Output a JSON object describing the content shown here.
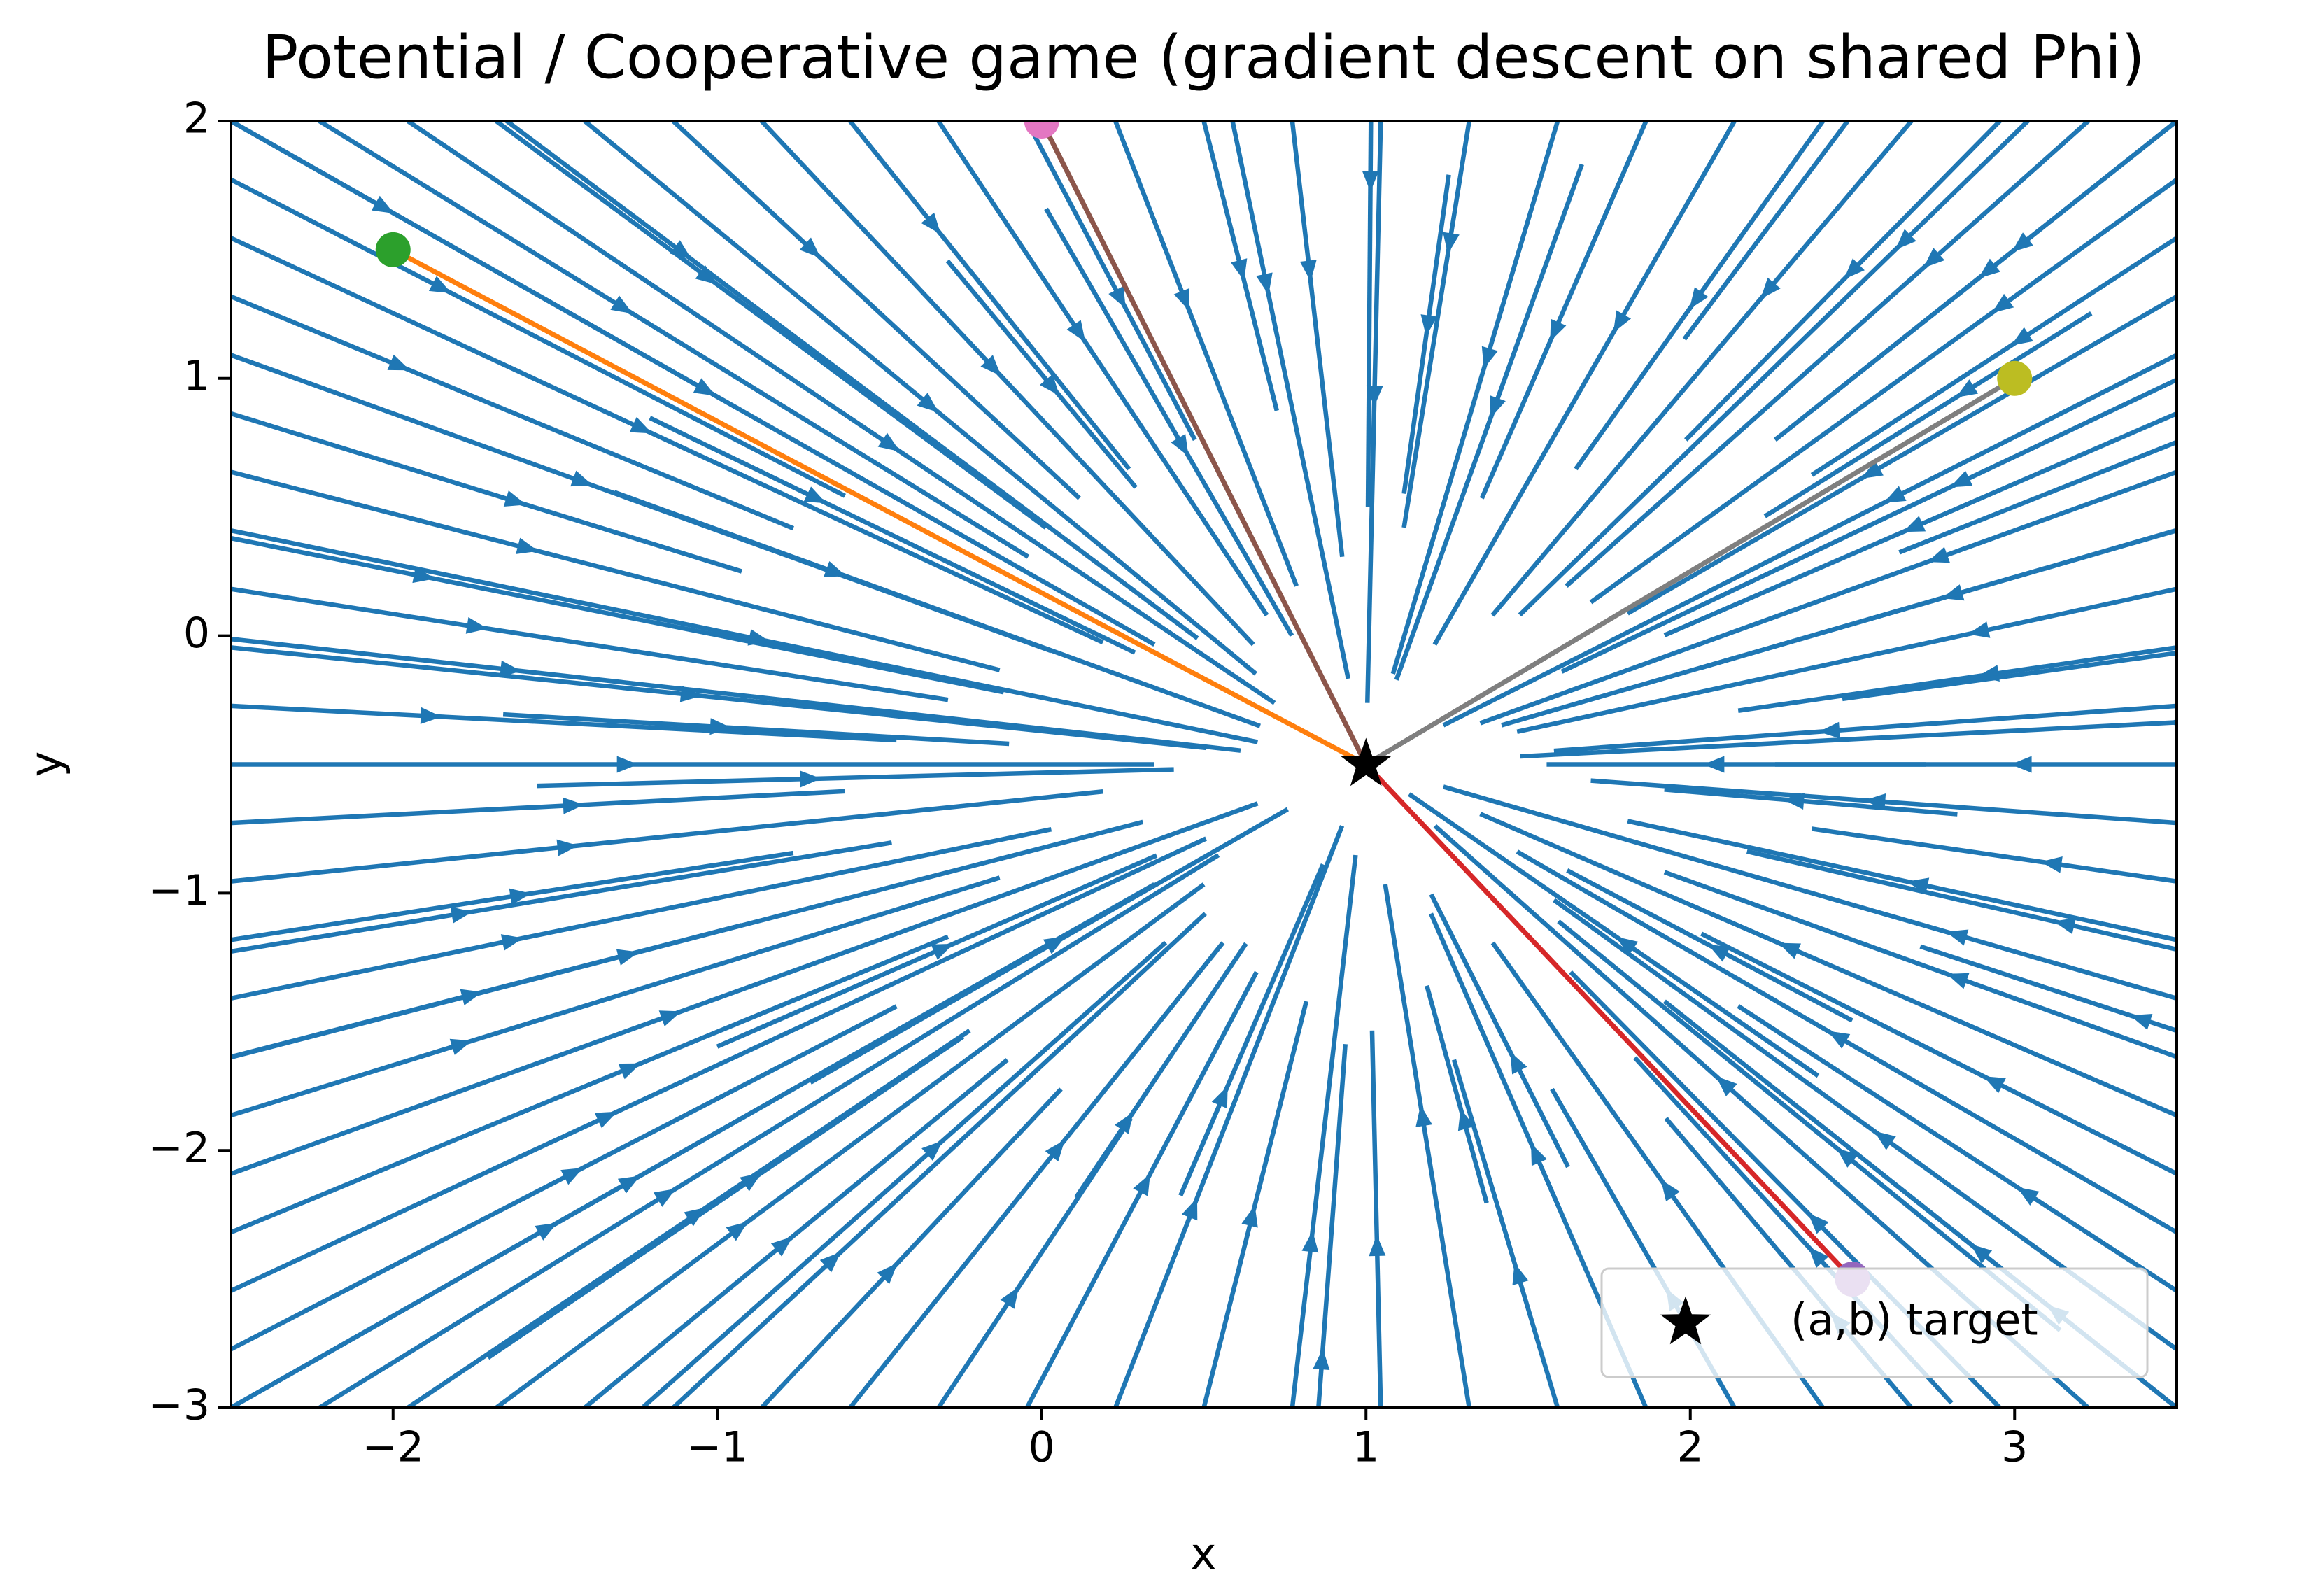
{
  "chart_data": {
    "type": "streamplot",
    "title": "Potential / Cooperative game (gradient descent on shared Phi)",
    "x_label": "x",
    "y_label": "y",
    "xlim": [
      -2.5,
      3.5
    ],
    "ylim": [
      -3,
      2
    ],
    "xticks": [
      {
        "value": -2,
        "label": "−2"
      },
      {
        "value": -1,
        "label": "−1"
      },
      0,
      1,
      2,
      3
    ],
    "yticks": [
      {
        "value": -3,
        "label": "−3"
      },
      {
        "value": -2,
        "label": "−2"
      },
      {
        "value": -1,
        "label": "−1"
      },
      0,
      1,
      2
    ],
    "stream_color": "#1f77b4",
    "target": {
      "x": 1,
      "y": -0.5,
      "label": "(a,b) target",
      "color": "#000000"
    },
    "legend": "lower right",
    "trajectories": [
      {
        "color": "#ff7f0e",
        "start_color": "#2ca02c",
        "x": [
          -2,
          1
        ],
        "y": [
          1.5,
          -0.5
        ]
      },
      {
        "color": "#8c564b",
        "start_color": "#e377c2",
        "x": [
          0,
          1
        ],
        "y": [
          2,
          -0.5
        ]
      },
      {
        "color": "#7f7f7f",
        "start_color": "#bcbd22",
        "x": [
          3,
          1
        ],
        "y": [
          1,
          -0.5
        ]
      },
      {
        "color": "#d62728",
        "start_color": "#9467bd",
        "x": [
          2.5,
          1
        ],
        "y": [
          -2.5,
          -0.5
        ]
      }
    ]
  }
}
